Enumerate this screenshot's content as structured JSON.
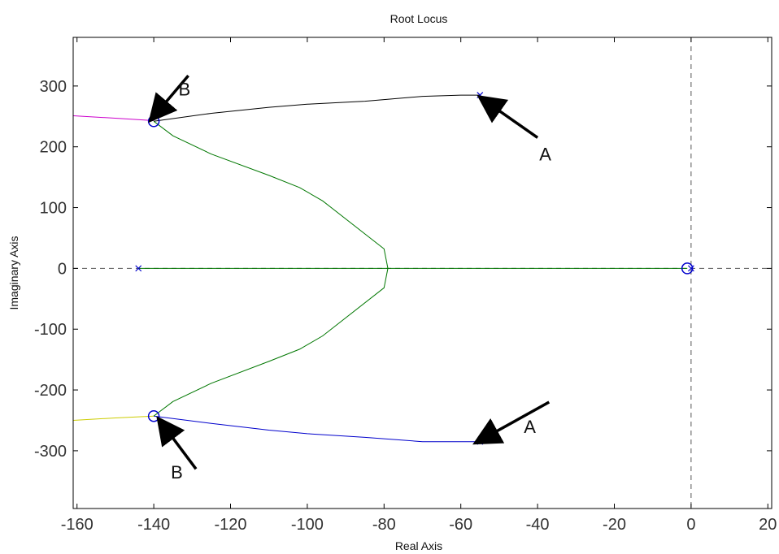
{
  "chart_data": {
    "type": "line",
    "title": "Root Locus",
    "xlabel": "Real Axis",
    "ylabel": "Imaginary Axis",
    "xlim": [
      -161,
      21
    ],
    "ylim": [
      -395,
      380
    ],
    "x_ticks": [
      -160,
      -140,
      -120,
      -100,
      -80,
      -60,
      -40,
      -20,
      0,
      20
    ],
    "y_ticks": [
      -300,
      -200,
      -100,
      0,
      100,
      200,
      300
    ],
    "grid": false,
    "colors": {
      "axes": "#000000",
      "dashed_reference": "#555555",
      "marker": "#0000cc",
      "annotation": "#000000"
    },
    "series": [
      {
        "color": "#000000",
        "points": [
          [
            -140,
            242
          ],
          [
            -125,
            255
          ],
          [
            -110,
            265
          ],
          [
            -100,
            270
          ],
          [
            -85,
            275
          ],
          [
            -70,
            283
          ],
          [
            -60,
            285
          ],
          [
            -55,
            285
          ]
        ]
      },
      {
        "color": "#0000cc",
        "points": [
          [
            -140,
            -243
          ],
          [
            -125,
            -255
          ],
          [
            -110,
            -266
          ],
          [
            -100,
            -272
          ],
          [
            -85,
            -278
          ],
          [
            -70,
            -285
          ],
          [
            -60,
            -285
          ],
          [
            -55,
            -285
          ]
        ]
      },
      {
        "color": "#cc00cc",
        "points": [
          [
            -161,
            251
          ],
          [
            -150,
            247
          ],
          [
            -140,
            243
          ]
        ]
      },
      {
        "color": "#cccc00",
        "points": [
          [
            -161,
            -250
          ],
          [
            -150,
            -246
          ],
          [
            -140,
            -243
          ]
        ]
      },
      {
        "color": "#007700",
        "points": [
          [
            -140,
            242
          ],
          [
            -135,
            218
          ],
          [
            -125,
            188
          ],
          [
            -110,
            153
          ],
          [
            -102,
            133
          ],
          [
            -96,
            111
          ],
          [
            -80,
            32
          ],
          [
            -79,
            0
          ]
        ]
      },
      {
        "color": "#007700",
        "points": [
          [
            -140,
            -243
          ],
          [
            -135,
            -219
          ],
          [
            -125,
            -189
          ],
          [
            -110,
            -153
          ],
          [
            -102,
            -133
          ],
          [
            -96,
            -111
          ],
          [
            -80,
            -32
          ],
          [
            -79,
            0
          ]
        ]
      },
      {
        "color": "#007700",
        "points": [
          [
            -144,
            0
          ],
          [
            -79,
            0
          ],
          [
            -1,
            0
          ]
        ]
      }
    ],
    "poles": [
      [
        -55,
        285
      ],
      [
        -55,
        -285
      ],
      [
        -144,
        0
      ],
      [
        0,
        0
      ]
    ],
    "zeros": [
      [
        -140,
        242
      ],
      [
        -140,
        -243
      ],
      [
        -1,
        0
      ]
    ],
    "annotations": [
      {
        "label": "A",
        "text_at": [
          -38,
          188
        ],
        "tail": [
          -40,
          215
        ],
        "head": [
          -54,
          277
        ]
      },
      {
        "label": "A",
        "text_at": [
          -42,
          -260
        ],
        "tail": [
          -37,
          -220
        ],
        "head": [
          -55,
          -283
        ]
      },
      {
        "label": "B",
        "text_at": [
          -132,
          295
        ],
        "tail": [
          -131,
          317
        ],
        "head": [
          -140,
          250
        ]
      },
      {
        "label": "B",
        "text_at": [
          -134,
          -335
        ],
        "tail": [
          -129,
          -330
        ],
        "head": [
          -138,
          -254
        ]
      }
    ]
  }
}
